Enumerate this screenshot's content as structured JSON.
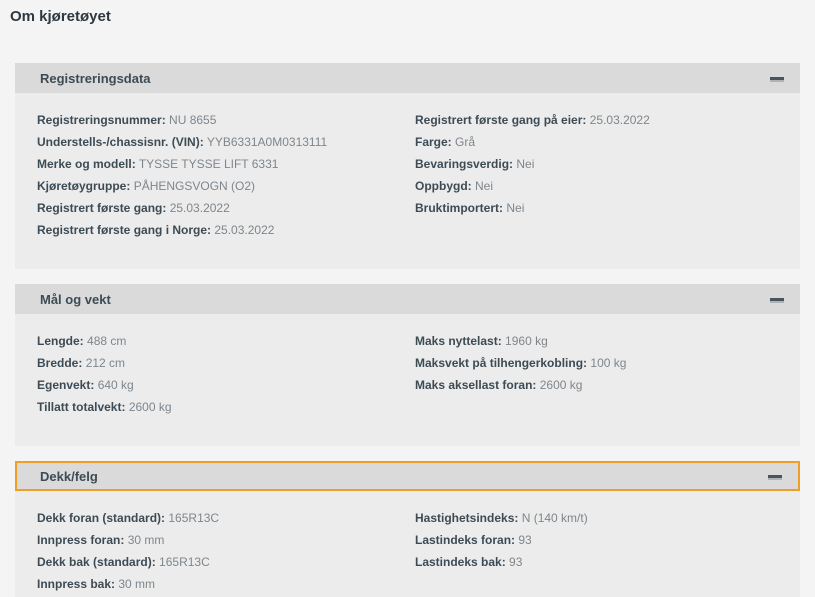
{
  "page": {
    "title": "Om kjøretøyet"
  },
  "colors": {
    "accent_focus_border": "#ef9e27",
    "header_bar": "#dadada",
    "content_panel": "#ececec",
    "label_text": "#3d4b55",
    "value_text": "#7e868c"
  },
  "accordion": {
    "collapse_icon": "minus-icon",
    "sections": [
      {
        "title": "Registreringsdata",
        "expanded": true,
        "highlighted": false,
        "columns": {
          "left": [
            {
              "label": "Registreringsnummer:",
              "value": "NU 8655"
            },
            {
              "label": "Understells-/chassisnr. (VIN):",
              "value": "YYB6331A0M0313111"
            },
            {
              "label": "Merke og modell:",
              "value": "TYSSE TYSSE LIFT 6331"
            },
            {
              "label": "Kjøretøygruppe:",
              "value": "PÅHENGSVOGN (O2)"
            },
            {
              "label": "Registrert første gang:",
              "value": "25.03.2022"
            },
            {
              "label": "Registrert første gang i Norge:",
              "value": "25.03.2022"
            }
          ],
          "right": [
            {
              "label": "Registrert første gang på eier:",
              "value": "25.03.2022"
            },
            {
              "label": "Farge:",
              "value": "Grå"
            },
            {
              "label": "Bevaringsverdig:",
              "value": "Nei"
            },
            {
              "label": "Oppbygd:",
              "value": "Nei"
            },
            {
              "label": "Bruktimportert:",
              "value": "Nei"
            }
          ]
        }
      },
      {
        "title": "Mål og vekt",
        "expanded": true,
        "highlighted": false,
        "columns": {
          "left": [
            {
              "label": "Lengde:",
              "value": "488 cm"
            },
            {
              "label": "Bredde:",
              "value": "212 cm"
            },
            {
              "label": "Egenvekt:",
              "value": "640 kg"
            },
            {
              "label": "Tillatt totalvekt:",
              "value": "2600 kg"
            }
          ],
          "right": [
            {
              "label": "Maks nyttelast:",
              "value": "1960 kg"
            },
            {
              "label": "Maksvekt på tilhengerkobling:",
              "value": "100 kg"
            },
            {
              "label": "Maks aksellast foran:",
              "value": "2600 kg"
            }
          ]
        }
      },
      {
        "title": "Dekk/felg",
        "expanded": true,
        "highlighted": true,
        "columns": {
          "left": [
            {
              "label": "Dekk foran (standard):",
              "value": "165R13C"
            },
            {
              "label": "Innpress foran:",
              "value": "30 mm"
            },
            {
              "label": "Dekk bak (standard):",
              "value": "165R13C"
            },
            {
              "label": "Innpress bak:",
              "value": "30 mm"
            }
          ],
          "right": [
            {
              "label": "Hastighetsindeks:",
              "value": "N (140 km/t)"
            },
            {
              "label": "Lastindeks foran:",
              "value": "93"
            },
            {
              "label": "Lastindeks bak:",
              "value": "93"
            }
          ]
        }
      }
    ]
  }
}
